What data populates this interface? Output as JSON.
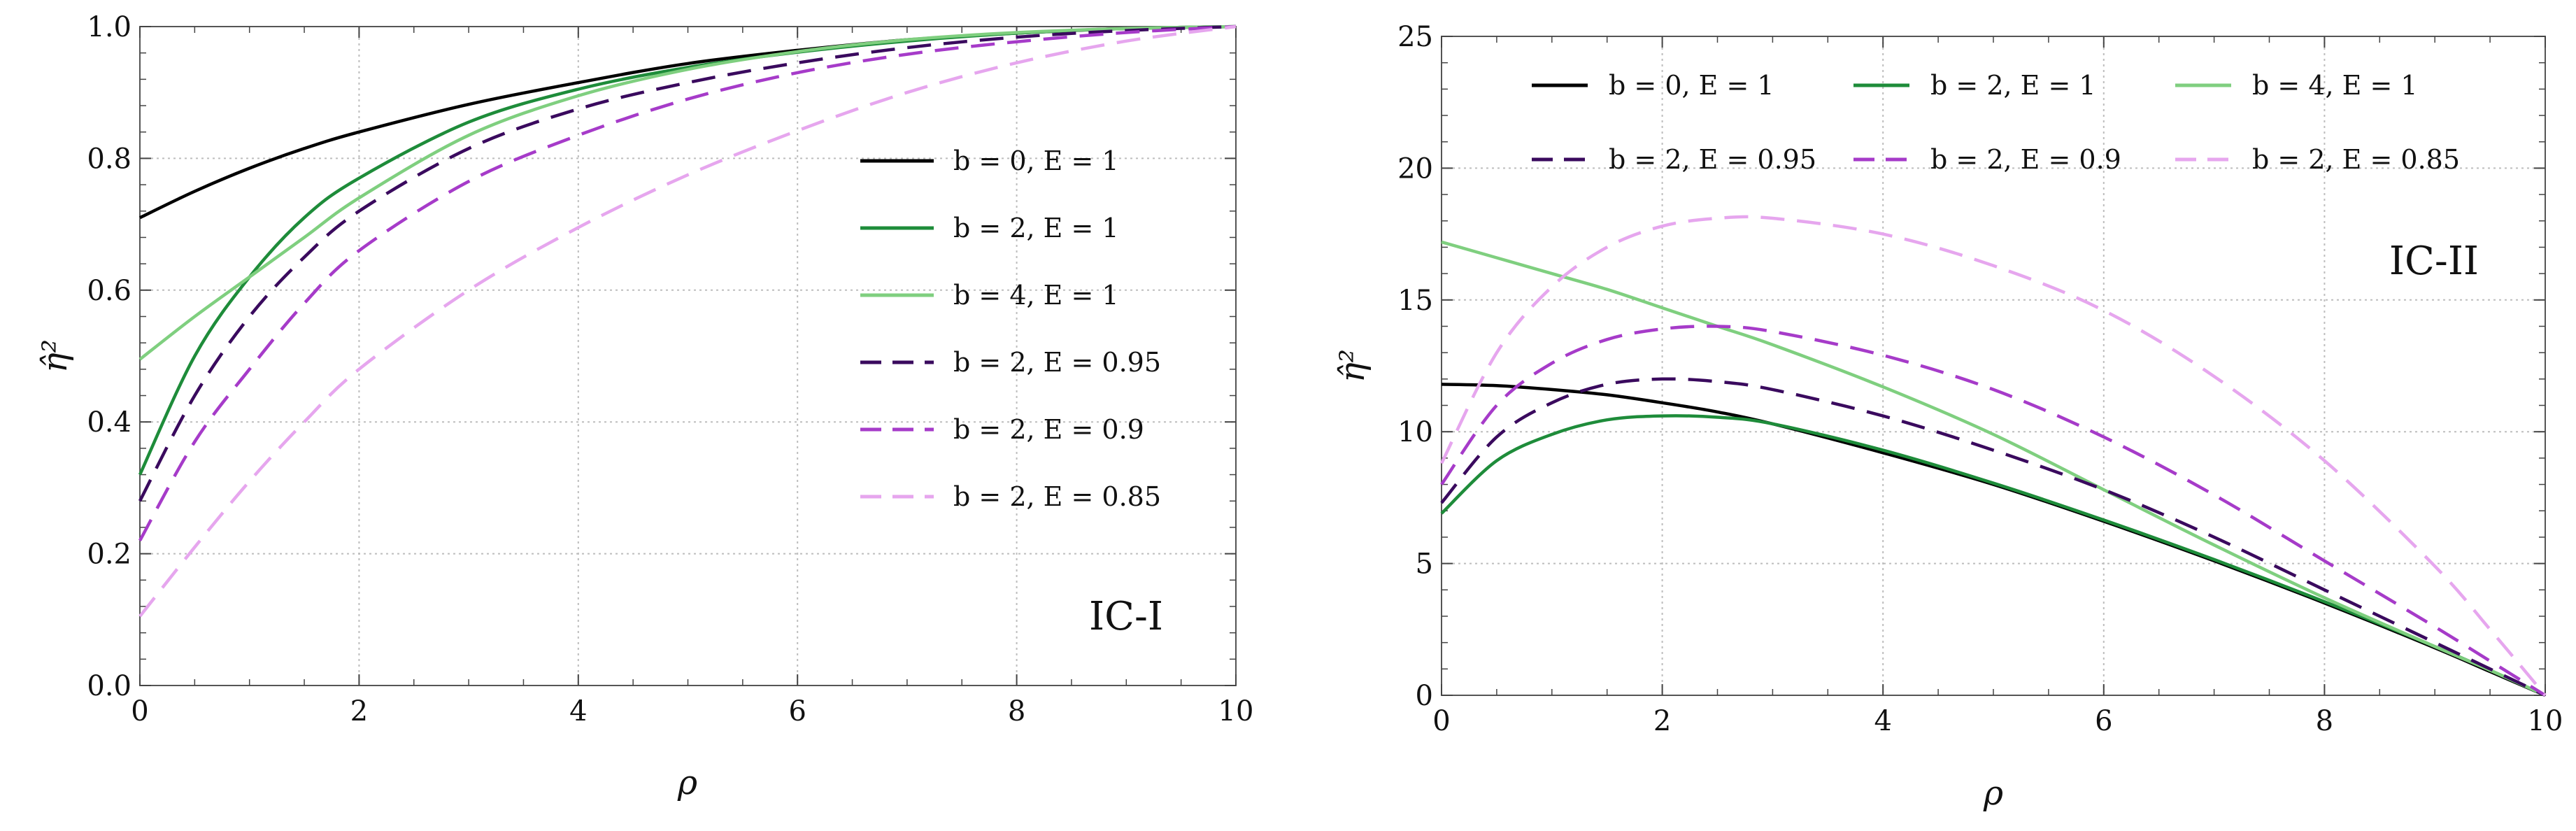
{
  "colors": {
    "b0_E1": "#000000",
    "b2_E1": "#1e8c3a",
    "b4_E1": "#7fcf7f",
    "b2_E095": "#3a0a5e",
    "b2_E09": "#a63bc9",
    "b2_E085": "#e6a6ee",
    "grid": "#bdbdbd"
  },
  "chart_data": [
    {
      "type": "line",
      "annotation": "IC-I",
      "xlabel": "ρ",
      "ylabel": "η̂²",
      "xlim": [
        0,
        10
      ],
      "ylim": [
        0,
        1.0
      ],
      "xticks": [
        "0",
        "2",
        "4",
        "6",
        "8",
        "10"
      ],
      "yticks": [
        "0.0",
        "0.2",
        "0.4",
        "0.6",
        "0.8",
        "1.0"
      ],
      "xtick_values": [
        0,
        2,
        4,
        6,
        8,
        10
      ],
      "ytick_values": [
        0,
        0.2,
        0.4,
        0.6,
        0.8,
        1.0
      ],
      "legend_placement": "right",
      "x": [
        0,
        0.5,
        1,
        1.5,
        2,
        3,
        4,
        5,
        6,
        7,
        8,
        9,
        10
      ],
      "series": [
        {
          "name": "b = 0,  E = 1",
          "color_key": "b0_E1",
          "dash": "solid",
          "values": [
            0.71,
            0.75,
            0.785,
            0.815,
            0.84,
            0.882,
            0.915,
            0.944,
            0.964,
            0.98,
            0.99,
            0.997,
            1.0
          ]
        },
        {
          "name": "b = 2,  E = 1",
          "color_key": "b2_E1",
          "dash": "solid",
          "values": [
            0.32,
            0.5,
            0.62,
            0.71,
            0.77,
            0.855,
            0.905,
            0.938,
            0.961,
            0.978,
            0.99,
            0.997,
            1.0
          ]
        },
        {
          "name": "b = 4,  E = 1",
          "color_key": "b4_E1",
          "dash": "solid",
          "values": [
            0.495,
            0.56,
            0.62,
            0.68,
            0.74,
            0.835,
            0.895,
            0.935,
            0.962,
            0.98,
            0.991,
            0.997,
            1.0
          ]
        },
        {
          "name": "b = 2,  E = 0.95",
          "color_key": "b2_E095",
          "dash": "dashed",
          "values": [
            0.28,
            0.44,
            0.56,
            0.65,
            0.72,
            0.815,
            0.875,
            0.915,
            0.945,
            0.968,
            0.984,
            0.994,
            1.0
          ]
        },
        {
          "name": "b = 2,  E = 0.9",
          "color_key": "b2_E09",
          "dash": "dashed",
          "values": [
            0.22,
            0.37,
            0.48,
            0.58,
            0.66,
            0.765,
            0.835,
            0.89,
            0.93,
            0.958,
            0.977,
            0.991,
            1.0
          ]
        },
        {
          "name": "b = 2,  E = 0.85",
          "color_key": "b2_E085",
          "dash": "dashed",
          "values": [
            0.105,
            0.21,
            0.31,
            0.4,
            0.48,
            0.6,
            0.695,
            0.775,
            0.842,
            0.9,
            0.945,
            0.978,
            1.0
          ]
        }
      ]
    },
    {
      "type": "line",
      "annotation": "IC-II",
      "xlabel": "ρ",
      "ylabel": "η̂²",
      "xlim": [
        0,
        10
      ],
      "ylim": [
        0,
        25
      ],
      "xticks": [
        "0",
        "2",
        "4",
        "6",
        "8",
        "10"
      ],
      "yticks": [
        "0",
        "5",
        "10",
        "15",
        "20",
        "25"
      ],
      "xtick_values": [
        0,
        2,
        4,
        6,
        8,
        10
      ],
      "ytick_values": [
        0,
        5,
        10,
        15,
        20,
        25
      ],
      "legend_placement": "top",
      "x": [
        0,
        0.5,
        1,
        1.5,
        2,
        2.5,
        3,
        4,
        5,
        6,
        7,
        8,
        9,
        9.5,
        10
      ],
      "series": [
        {
          "name": "b = 0,  E = 1",
          "color_key": "b0_E1",
          "dash": "solid",
          "values": [
            11.8,
            11.75,
            11.6,
            11.4,
            11.1,
            10.75,
            10.3,
            9.2,
            8.0,
            6.6,
            5.1,
            3.5,
            1.8,
            0.9,
            0.0
          ]
        },
        {
          "name": "b = 2,  E = 1",
          "color_key": "b2_E1",
          "dash": "solid",
          "values": [
            6.9,
            8.9,
            9.9,
            10.45,
            10.6,
            10.55,
            10.3,
            9.3,
            8.05,
            6.65,
            5.15,
            3.55,
            1.85,
            0.95,
            0.0
          ]
        },
        {
          "name": "b = 4,  E = 1",
          "color_key": "b4_E1",
          "dash": "solid",
          "values": [
            17.2,
            16.6,
            16.0,
            15.4,
            14.7,
            14.0,
            13.3,
            11.7,
            9.9,
            7.8,
            5.7,
            3.7,
            1.85,
            0.95,
            0.0
          ]
        },
        {
          "name": "b = 2,  E = 0.95",
          "color_key": "b2_E095",
          "dash": "dashed",
          "values": [
            7.3,
            9.8,
            11.1,
            11.8,
            12.0,
            11.9,
            11.6,
            10.6,
            9.3,
            7.8,
            6.0,
            4.0,
            2.0,
            1.0,
            0.0
          ]
        },
        {
          "name": "b = 2,  E = 0.9",
          "color_key": "b2_E09",
          "dash": "dashed",
          "values": [
            8.0,
            11.0,
            12.6,
            13.5,
            13.9,
            14.0,
            13.8,
            12.9,
            11.6,
            9.8,
            7.6,
            5.1,
            2.6,
            1.3,
            0.0
          ]
        },
        {
          "name": "b = 2,  E = 0.85",
          "color_key": "b2_E085",
          "dash": "dashed",
          "values": [
            8.8,
            13.0,
            15.5,
            17.0,
            17.8,
            18.1,
            18.1,
            17.5,
            16.3,
            14.6,
            12.1,
            8.9,
            4.9,
            2.5,
            0.0
          ]
        }
      ]
    }
  ]
}
